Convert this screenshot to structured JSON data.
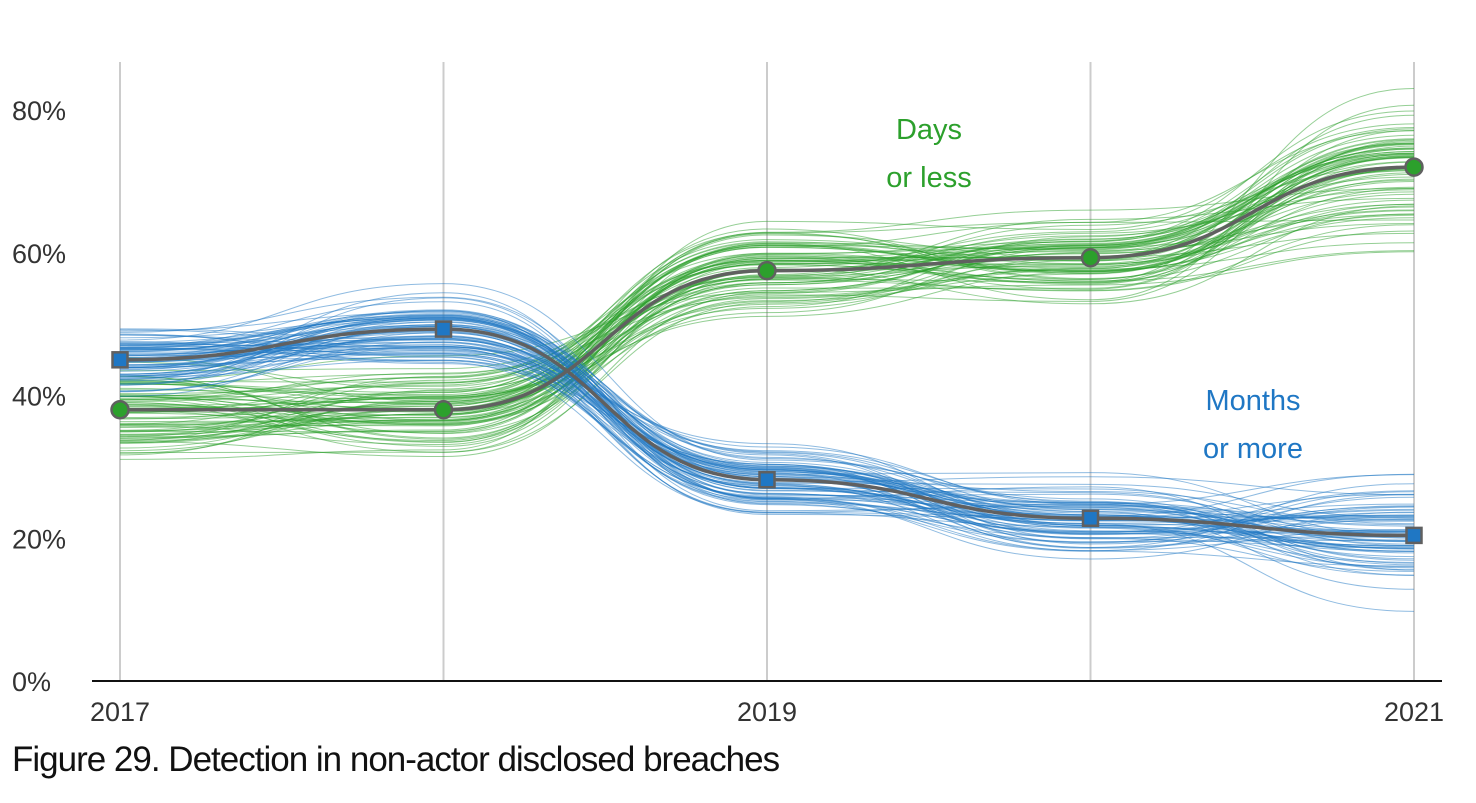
{
  "caption": "Figure 29. Detection in non-actor disclosed breaches",
  "chart_data": {
    "type": "line",
    "title": "Figure 29. Detection in non-actor disclosed breaches",
    "xlabel": "",
    "ylabel": "",
    "x": [
      2017,
      2018,
      2019,
      2020,
      2021
    ],
    "x_tick_labels": [
      "2017",
      "",
      "2019",
      "",
      "2021"
    ],
    "y_ticks": [
      0,
      20,
      40,
      60,
      80
    ],
    "y_tick_labels": [
      "0%",
      "20%",
      "40%",
      "60%",
      "80%"
    ],
    "ylim": [
      0,
      87
    ],
    "grid": "vertical",
    "legend": "none",
    "series": [
      {
        "name": "Days or less",
        "label_lines": [
          "Days",
          "or less"
        ],
        "marker": "circle",
        "color": "#2ca02c",
        "values": [
          38,
          38,
          57.5,
          59.3,
          72
        ],
        "spread": 3.5
      },
      {
        "name": "Months or more",
        "label_lines": [
          "Months",
          "or more"
        ],
        "marker": "square",
        "color": "#1f77c4",
        "values": [
          45,
          49.3,
          28.2,
          22.8,
          20.4
        ],
        "spread": 3
      }
    ]
  },
  "colors": {
    "median_line": "#606060",
    "gridline": "#cccccc",
    "axis": "#111111"
  }
}
